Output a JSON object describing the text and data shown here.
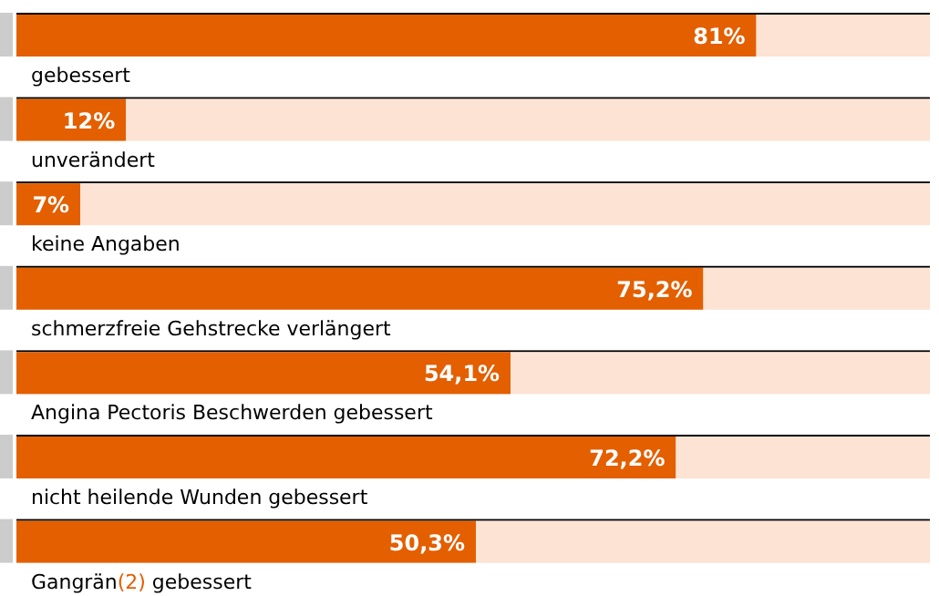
{
  "chart_data": {
    "type": "bar",
    "orientation": "horizontal",
    "stacked": true,
    "categories": [
      "gebessert",
      "unverändert",
      "keine Angaben",
      "schmerzfreie Gehstrecke verlängert",
      "Angina Pectoris Beschwerden gebessert",
      "nicht heilende Wunden gebessert",
      "Gangrän(2) gebessert"
    ],
    "series": [
      {
        "color": "#e35f00",
        "values": [
          81,
          12,
          7,
          75.2,
          54.1,
          72.2,
          50.3
        ],
        "value_labels": [
          "81%",
          "12%",
          "7%",
          "75,2%",
          "54,1%",
          "72,2%",
          "50,3%"
        ]
      },
      {
        "color": "#fce3d3",
        "values": [
          19,
          88,
          93,
          24.8,
          45.9,
          27.8,
          49.7
        ]
      }
    ],
    "xlim": [
      0,
      100
    ],
    "tick_labels": "y"
  }
}
